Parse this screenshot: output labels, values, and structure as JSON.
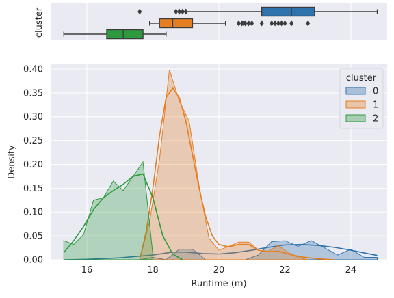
{
  "chart_data": [
    {
      "type": "boxplot",
      "orientation": "horizontal",
      "ylabel": "cluster",
      "xlim": [
        14.9,
        25.1
      ],
      "grid": true,
      "boxes": [
        {
          "cluster": "0",
          "color": "#2f73ad",
          "whisker_low": 18.9,
          "q1": 21.3,
          "median": 22.2,
          "q3": 22.9,
          "whisker_high": 24.8,
          "outliers": [
            17.6,
            18.7,
            18.8,
            18.9,
            19.0
          ]
        },
        {
          "cluster": "1",
          "color": "#e67e22",
          "whisker_low": 17.9,
          "q1": 18.2,
          "median": 18.6,
          "q3": 19.2,
          "whisker_high": 20.2,
          "outliers": [
            20.6,
            20.7,
            20.75,
            20.8,
            20.9,
            21.0,
            21.3,
            21.6,
            21.7,
            21.8,
            21.9,
            22.0,
            22.2,
            22.7
          ]
        },
        {
          "cluster": "2",
          "color": "#2e9a3e",
          "whisker_low": 15.3,
          "q1": 16.6,
          "median": 17.1,
          "q3": 17.7,
          "whisker_high": 18.4,
          "outliers": []
        }
      ]
    },
    {
      "type": "histogram-kde",
      "xlabel": "Runtime (m)",
      "ylabel": "Density",
      "xlim": [
        14.9,
        25.1
      ],
      "ylim": [
        0,
        0.41
      ],
      "xticks": [
        "16",
        "18",
        "20",
        "22",
        "24"
      ],
      "yticks": [
        "0.00",
        "0.05",
        "0.10",
        "0.15",
        "0.20",
        "0.25",
        "0.30",
        "0.35",
        "0.40"
      ],
      "grid": true,
      "legend": {
        "title": "cluster",
        "placement": "top-right"
      },
      "series": [
        {
          "name": "0",
          "color": "#2f73ad",
          "hist_x": [
            17.6,
            18.0,
            18.4,
            18.8,
            19.2,
            19.6,
            20.0,
            20.4,
            20.8,
            21.2,
            21.6,
            22.0,
            22.4,
            22.8,
            23.2,
            23.6,
            24.0,
            24.4,
            24.8
          ],
          "hist_y": [
            0.0,
            0.005,
            0.0,
            0.022,
            0.022,
            0.0,
            0.0,
            0.0,
            0.0,
            0.01,
            0.038,
            0.04,
            0.028,
            0.04,
            0.025,
            0.01,
            0.022,
            0.005,
            0.005
          ],
          "kde_x": [
            15.3,
            16.0,
            17.0,
            18.0,
            18.6,
            19.0,
            19.5,
            20.0,
            20.5,
            21.0,
            21.5,
            22.0,
            22.5,
            23.0,
            23.5,
            24.0,
            24.5,
            24.8
          ],
          "kde_y": [
            0.0,
            0.001,
            0.004,
            0.01,
            0.016,
            0.016,
            0.013,
            0.012,
            0.015,
            0.02,
            0.026,
            0.031,
            0.032,
            0.03,
            0.026,
            0.02,
            0.013,
            0.009
          ]
        },
        {
          "name": "1",
          "color": "#e67e22",
          "hist_x": [
            17.6,
            17.9,
            18.2,
            18.5,
            18.8,
            19.1,
            19.4,
            19.7,
            20.0,
            20.3,
            20.6,
            20.9,
            21.2,
            21.5,
            21.8,
            22.1,
            22.4,
            22.7
          ],
          "hist_y": [
            0.0,
            0.08,
            0.21,
            0.398,
            0.333,
            0.29,
            0.155,
            0.045,
            0.02,
            0.028,
            0.037,
            0.037,
            0.02,
            0.018,
            0.03,
            0.015,
            0.005,
            0.0
          ],
          "kde_x": [
            17.6,
            17.8,
            18.0,
            18.2,
            18.4,
            18.6,
            18.8,
            19.0,
            19.2,
            19.4,
            19.6,
            19.8,
            20.0,
            20.3,
            20.6,
            20.9,
            21.2,
            21.5,
            21.8,
            22.1,
            22.5,
            23.0,
            23.5
          ],
          "kde_y": [
            0.0,
            0.06,
            0.15,
            0.26,
            0.34,
            0.36,
            0.34,
            0.29,
            0.22,
            0.15,
            0.09,
            0.05,
            0.032,
            0.027,
            0.032,
            0.032,
            0.02,
            0.017,
            0.018,
            0.012,
            0.006,
            0.002,
            0.0
          ]
        },
        {
          "name": "2",
          "color": "#2e9a3e",
          "hist_x": [
            15.3,
            15.6,
            15.9,
            16.2,
            16.5,
            16.8,
            17.1,
            17.4,
            17.7,
            18.0
          ],
          "hist_y": [
            0.04,
            0.032,
            0.053,
            0.125,
            0.13,
            0.165,
            0.145,
            0.175,
            0.205,
            0.01
          ],
          "kde_x": [
            15.3,
            15.6,
            15.9,
            16.2,
            16.5,
            16.8,
            17.1,
            17.4,
            17.7,
            18.0,
            18.3,
            18.6,
            18.9
          ],
          "kde_y": [
            0.015,
            0.04,
            0.07,
            0.105,
            0.13,
            0.145,
            0.158,
            0.175,
            0.18,
            0.13,
            0.05,
            0.012,
            0.0
          ]
        }
      ]
    }
  ]
}
